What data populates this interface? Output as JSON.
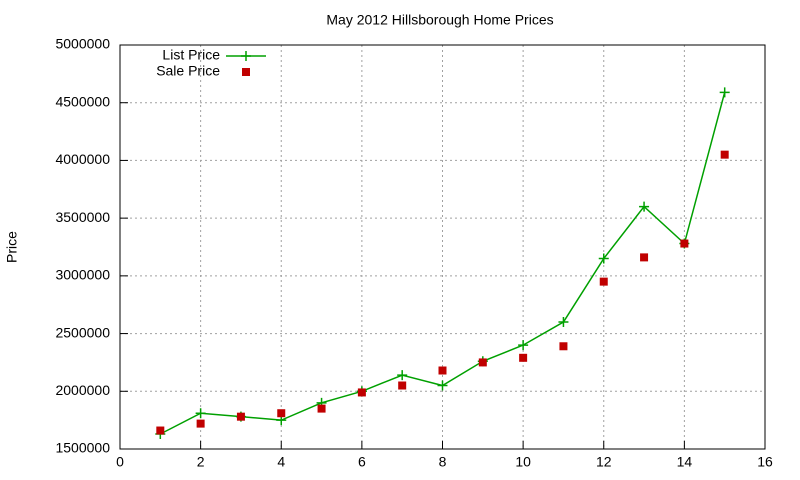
{
  "chart_data": {
    "type": "line",
    "title": "May 2012 Hillsborough Home Prices",
    "y_label": "Price",
    "x": [
      1,
      2,
      3,
      4,
      5,
      6,
      7,
      8,
      9,
      10,
      11,
      12,
      13,
      14,
      15
    ],
    "series": [
      {
        "name": "List Price",
        "color": "#00a000",
        "marker": "plus",
        "line": true,
        "values": [
          1630000,
          1810000,
          1780000,
          1750000,
          1900000,
          2000000,
          2140000,
          2050000,
          2260000,
          2400000,
          2600000,
          3150000,
          3600000,
          3280000,
          4590000
        ]
      },
      {
        "name": "Sale Price",
        "color": "#c00000",
        "marker": "square",
        "line": false,
        "values": [
          1660000,
          1720000,
          1780000,
          1810000,
          1850000,
          1990000,
          2050000,
          2180000,
          2250000,
          2290000,
          2390000,
          2950000,
          3160000,
          3280000,
          4050000
        ]
      }
    ],
    "xlim": [
      0,
      16
    ],
    "xticks": [
      0,
      2,
      4,
      6,
      8,
      10,
      12,
      14,
      16
    ],
    "ylim": [
      1500000,
      5000000
    ],
    "yticks": [
      1500000,
      2000000,
      2500000,
      3000000,
      3500000,
      4000000,
      4500000,
      5000000
    ],
    "grid": true,
    "legend": "top-left"
  }
}
